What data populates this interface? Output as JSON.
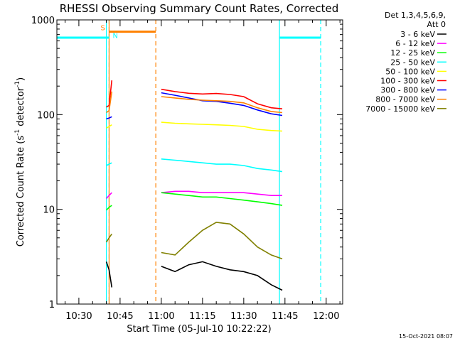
{
  "chart_data": {
    "type": "line",
    "title": "RHESSI Observing Summary Count Rates, Corrected",
    "xlabel": "Start Time (05-Jul-10 10:22:22)",
    "ylabel": "Corrected Count Rate (s⁻¹ detector⁻¹)",
    "ylabel_parts": {
      "main": "Corrected Count Rate (s",
      "sup1": "-1",
      "mid": " detector",
      "sup2": "-1",
      "end": ")"
    },
    "yscale": "log",
    "ylim": [
      1,
      1000
    ],
    "xlim": [
      "10:22",
      "12:06"
    ],
    "x_ticks": [
      "10:30",
      "10:45",
      "11:00",
      "11:15",
      "11:30",
      "11:45",
      "12:00"
    ],
    "y_ticks": [
      "1",
      "10",
      "100",
      "1000"
    ],
    "legend_title": [
      "Det 1,3,4,5,6,9,",
      "Att 0"
    ],
    "legend_position": "right",
    "footer": "15-Oct-2021 08:07",
    "flags": {
      "s_label": "S",
      "n_label": "N"
    },
    "series": [
      {
        "name": "3 - 6 keV",
        "color": "#000000",
        "segments": [
          {
            "points": [
              [
                "10:40",
                2.8
              ],
              [
                "10:41",
                2.3
              ],
              [
                "10:42",
                1.5
              ]
            ]
          },
          {
            "points": [
              [
                "11:00",
                2.5
              ],
              [
                "11:05",
                2.2
              ],
              [
                "11:10",
                2.6
              ],
              [
                "11:15",
                2.8
              ],
              [
                "11:20",
                2.5
              ],
              [
                "11:25",
                2.3
              ],
              [
                "11:30",
                2.2
              ],
              [
                "11:35",
                2.0
              ],
              [
                "11:40",
                1.6
              ],
              [
                "11:44",
                1.4
              ]
            ]
          }
        ]
      },
      {
        "name": "6 - 12 keV",
        "color": "#ff00ff",
        "segments": [
          {
            "points": [
              [
                "10:40",
                13
              ],
              [
                "10:41",
                14
              ],
              [
                "10:42",
                15
              ]
            ]
          },
          {
            "points": [
              [
                "11:00",
                15
              ],
              [
                "11:05",
                15.5
              ],
              [
                "11:10",
                15.5
              ],
              [
                "11:15",
                15
              ],
              [
                "11:20",
                15
              ],
              [
                "11:25",
                15
              ],
              [
                "11:30",
                15
              ],
              [
                "11:35",
                14.5
              ],
              [
                "11:40",
                14
              ],
              [
                "11:44",
                14
              ]
            ]
          }
        ]
      },
      {
        "name": "12 - 25 keV",
        "color": "#00ff00",
        "segments": [
          {
            "points": [
              [
                "10:40",
                9.8
              ],
              [
                "10:41",
                10.5
              ],
              [
                "10:42",
                11
              ]
            ]
          },
          {
            "points": [
              [
                "11:00",
                15
              ],
              [
                "11:05",
                14.5
              ],
              [
                "11:10",
                14
              ],
              [
                "11:15",
                13.5
              ],
              [
                "11:20",
                13.5
              ],
              [
                "11:25",
                13
              ],
              [
                "11:30",
                12.5
              ],
              [
                "11:35",
                12
              ],
              [
                "11:40",
                11.5
              ],
              [
                "11:44",
                11
              ]
            ]
          }
        ]
      },
      {
        "name": "25 - 50 keV",
        "color": "#00ffff",
        "segments": [
          {
            "points": [
              [
                "10:40",
                29
              ],
              [
                "10:41",
                30
              ],
              [
                "10:42",
                31
              ]
            ]
          },
          {
            "points": [
              [
                "11:00",
                34
              ],
              [
                "11:05",
                33
              ],
              [
                "11:10",
                32
              ],
              [
                "11:15",
                31
              ],
              [
                "11:20",
                30
              ],
              [
                "11:25",
                30
              ],
              [
                "11:30",
                29
              ],
              [
                "11:35",
                27
              ],
              [
                "11:40",
                26
              ],
              [
                "11:44",
                25
              ]
            ]
          }
        ]
      },
      {
        "name": "50 - 100 keV",
        "color": "#ffff00",
        "segments": [
          {
            "points": [
              [
                "10:40",
                72
              ],
              [
                "10:41",
                75
              ],
              [
                "10:42",
                78
              ]
            ]
          },
          {
            "points": [
              [
                "11:00",
                83
              ],
              [
                "11:05",
                81
              ],
              [
                "11:10",
                80
              ],
              [
                "11:15",
                79
              ],
              [
                "11:20",
                78
              ],
              [
                "11:25",
                77
              ],
              [
                "11:30",
                75
              ],
              [
                "11:35",
                70
              ],
              [
                "11:40",
                68
              ],
              [
                "11:44",
                67
              ]
            ]
          }
        ]
      },
      {
        "name": "100 - 300 keV",
        "color": "#ff0000",
        "segments": [
          {
            "points": [
              [
                "10:40",
                120
              ],
              [
                "10:41",
                125
              ],
              [
                "10:42",
                230
              ]
            ]
          },
          {
            "points": [
              [
                "11:00",
                185
              ],
              [
                "11:05",
                175
              ],
              [
                "11:10",
                168
              ],
              [
                "11:15",
                165
              ],
              [
                "11:20",
                167
              ],
              [
                "11:25",
                163
              ],
              [
                "11:30",
                155
              ],
              [
                "11:35",
                130
              ],
              [
                "11:40",
                118
              ],
              [
                "11:44",
                115
              ]
            ]
          }
        ]
      },
      {
        "name": "300 - 800 keV",
        "color": "#0000ff",
        "segments": [
          {
            "points": [
              [
                "10:40",
                90
              ],
              [
                "10:41",
                92
              ],
              [
                "10:42",
                95
              ]
            ]
          },
          {
            "points": [
              [
                "11:00",
                170
              ],
              [
                "11:05",
                160
              ],
              [
                "11:10",
                150
              ],
              [
                "11:15",
                140
              ],
              [
                "11:20",
                138
              ],
              [
                "11:25",
                132
              ],
              [
                "11:30",
                125
              ],
              [
                "11:35",
                112
              ],
              [
                "11:40",
                102
              ],
              [
                "11:44",
                98
              ]
            ]
          }
        ]
      },
      {
        "name": "800 - 7000 keV",
        "color": "#ff8000",
        "segments": [
          {
            "points": [
              [
                "10:40",
                105
              ],
              [
                "10:41",
                110
              ],
              [
                "10:42",
                175
              ]
            ]
          },
          {
            "points": [
              [
                "11:00",
                155
              ],
              [
                "11:05",
                150
              ],
              [
                "11:10",
                145
              ],
              [
                "11:15",
                142
              ],
              [
                "11:20",
                140
              ],
              [
                "11:25",
                138
              ],
              [
                "11:30",
                133
              ],
              [
                "11:35",
                118
              ],
              [
                "11:40",
                108
              ],
              [
                "11:44",
                105
              ]
            ]
          }
        ]
      },
      {
        "name": "7000 - 15000 keV",
        "color": "#808000",
        "segments": [
          {
            "points": [
              [
                "10:40",
                4.5
              ],
              [
                "10:41",
                5
              ],
              [
                "10:42",
                5.5
              ]
            ]
          },
          {
            "points": [
              [
                "11:00",
                3.5
              ],
              [
                "11:05",
                3.3
              ],
              [
                "11:10",
                4.5
              ],
              [
                "11:15",
                6.0
              ],
              [
                "11:20",
                7.3
              ],
              [
                "11:25",
                7.0
              ],
              [
                "11:30",
                5.5
              ],
              [
                "11:35",
                4.0
              ],
              [
                "11:40",
                3.3
              ],
              [
                "11:44",
                3.0
              ]
            ]
          }
        ]
      }
    ],
    "markers": [
      {
        "kind": "night",
        "color": "#00ffff",
        "level": 650,
        "style": "solid",
        "start": "10:22",
        "end": "10:41"
      },
      {
        "kind": "night",
        "color": "#00ffff",
        "level": 650,
        "style": "solid",
        "start": "11:43",
        "end": "11:58"
      },
      {
        "kind": "saa",
        "color": "#ff8000",
        "level": 750,
        "style": "solid",
        "start": "10:41",
        "end": "10:58"
      }
    ],
    "vlines": [
      {
        "time": "10:40",
        "color": "#00ffff",
        "style": "solid"
      },
      {
        "time": "10:41",
        "color": "#00ffff",
        "style": "dashed"
      },
      {
        "time": "10:41",
        "color": "#ff8000",
        "style": "solid"
      },
      {
        "time": "10:58",
        "color": "#ff8000",
        "style": "dashed"
      },
      {
        "time": "11:43",
        "color": "#00ffff",
        "style": "solid"
      },
      {
        "time": "11:58",
        "color": "#00ffff",
        "style": "dashed"
      }
    ]
  }
}
